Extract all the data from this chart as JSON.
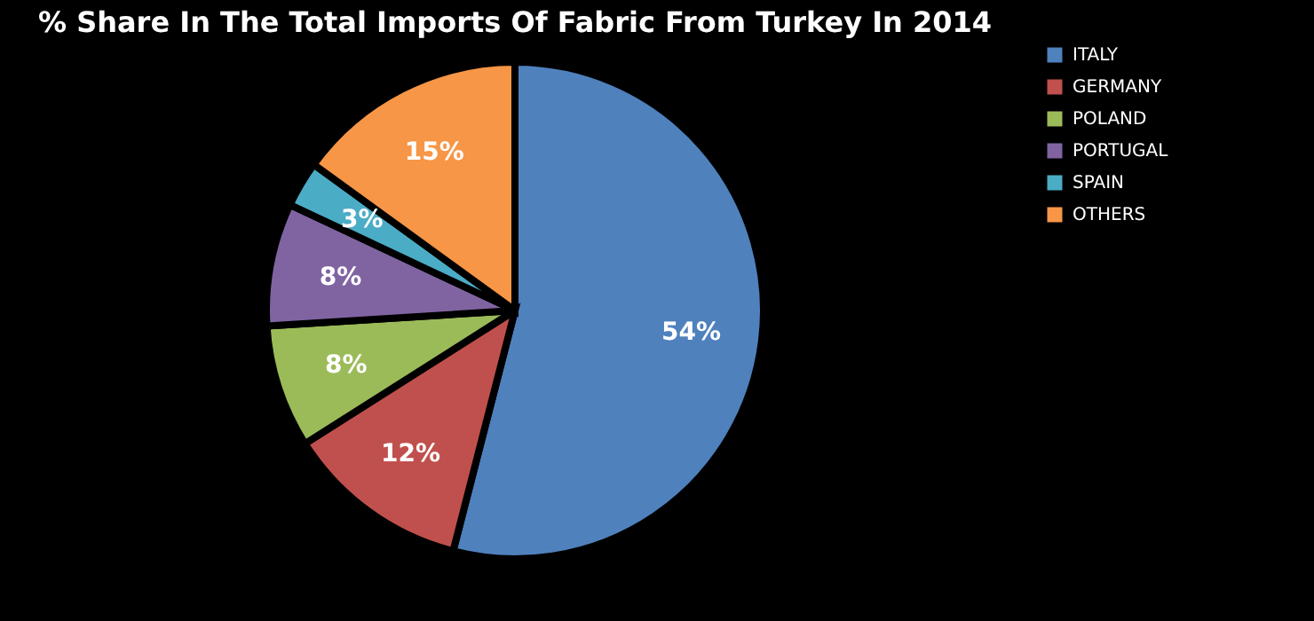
{
  "chart_data": {
    "type": "pie",
    "title": "% Share In The Total Imports Of Fabric From Turkey In 2014",
    "categories": [
      "ITALY",
      "GERMANY",
      "POLAND",
      "PORTUGAL",
      "SPAIN",
      "OTHERS"
    ],
    "values": [
      54,
      12,
      8,
      8,
      3,
      15
    ],
    "value_labels": [
      "54%",
      "12%",
      "8%",
      "8%",
      "3%",
      "15%"
    ],
    "colors": [
      "#4f81bd",
      "#c0504d",
      "#9bbb59",
      "#8064a2",
      "#4bacc6",
      "#f79646"
    ],
    "legend": "right"
  }
}
